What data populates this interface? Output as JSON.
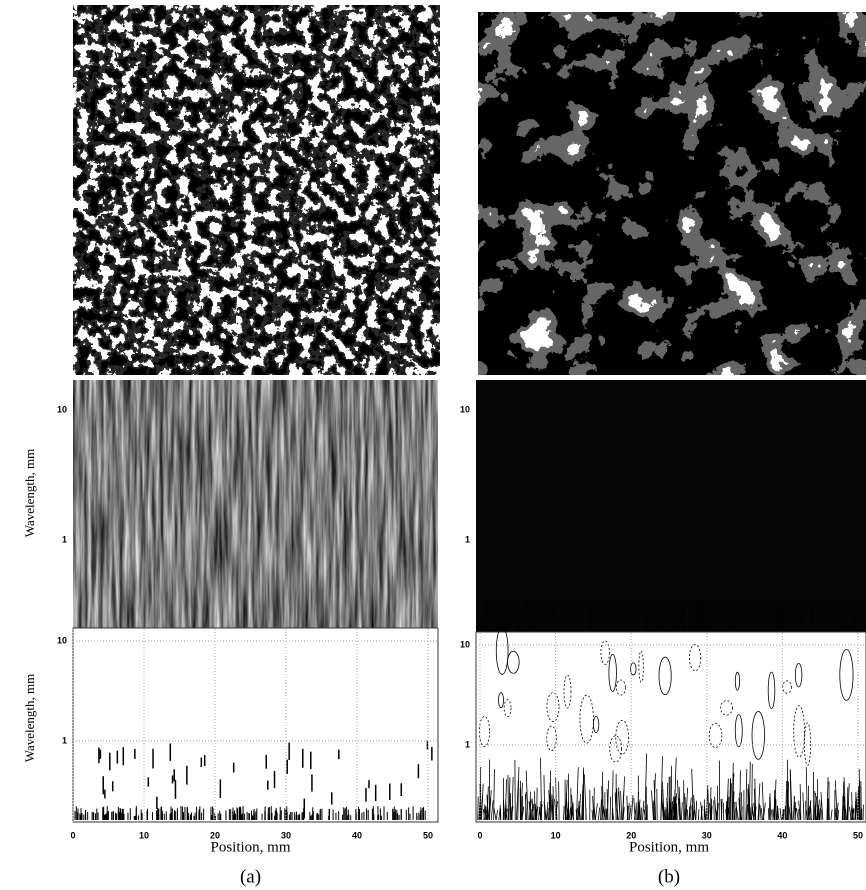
{
  "panels": [
    {
      "caption": "(a)",
      "xlabel": "Position, mm",
      "xticks": [
        0,
        10,
        20,
        30,
        40,
        50
      ],
      "plots": [
        {
          "ylabel": "Wavelength, mm",
          "yticks": [
            10,
            1
          ]
        },
        {
          "ylabel": "Wavelength, mm",
          "yticks": [
            10,
            1
          ]
        }
      ]
    },
    {
      "caption": "(b)",
      "xlabel": "Position, mm",
      "xticks": [
        0,
        10,
        20,
        30,
        40,
        50
      ],
      "plots": [
        {
          "yticks": [
            10,
            1
          ]
        },
        {
          "yticks": [
            10,
            1
          ]
        }
      ]
    }
  ]
}
